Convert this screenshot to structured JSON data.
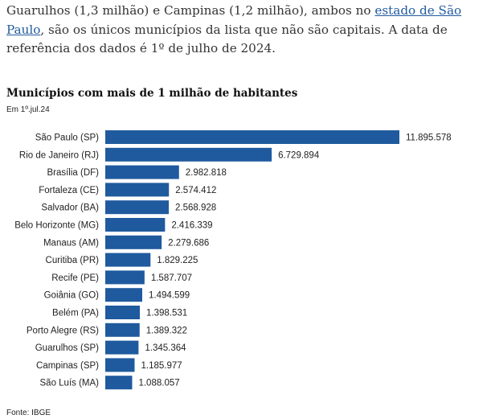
{
  "article": {
    "text_before_link": "Guarulhos (1,3 milhão) e Campinas (1,2 milhão), ambos no ",
    "link_text": "estado de São Paulo",
    "text_after_link": ", são os únicos municípios da lista que não são capitais. A data de referência dos dados é 1º de julho de 2024."
  },
  "colors": {
    "bar": "#1f5a9e",
    "link": "#1f5a9e"
  },
  "source": "Fonte: IBGE",
  "chart_data": {
    "type": "bar",
    "orientation": "horizontal",
    "title": "Municípios com mais de 1 milhão de habitantes",
    "subtitle": "Em 1º.jul.24",
    "categories": [
      "São Paulo (SP)",
      "Rio de Janeiro (RJ)",
      "Brasília (DF)",
      "Fortaleza (CE)",
      "Salvador (BA)",
      "Belo Horizonte (MG)",
      "Manaus (AM)",
      "Curitiba (PR)",
      "Recife (PE)",
      "Goiânia (GO)",
      "Belém (PA)",
      "Porto Alegre (RS)",
      "Guarulhos (SP)",
      "Campinas (SP)",
      "São Luís (MA)"
    ],
    "values": [
      11895578,
      6729894,
      2982818,
      2574412,
      2568928,
      2416339,
      2279686,
      1829225,
      1587707,
      1494599,
      1398531,
      1389322,
      1345364,
      1185977,
      1088057
    ],
    "value_labels": [
      "11.895.578",
      "6.729.894",
      "2.982.818",
      "2.574.412",
      "2.568.928",
      "2.416.339",
      "2.279.686",
      "1.829.225",
      "1.587.707",
      "1.494.599",
      "1.398.531",
      "1.389.322",
      "1.345.364",
      "1.185.977",
      "1.088.057"
    ],
    "grid": false,
    "legend": false
  }
}
